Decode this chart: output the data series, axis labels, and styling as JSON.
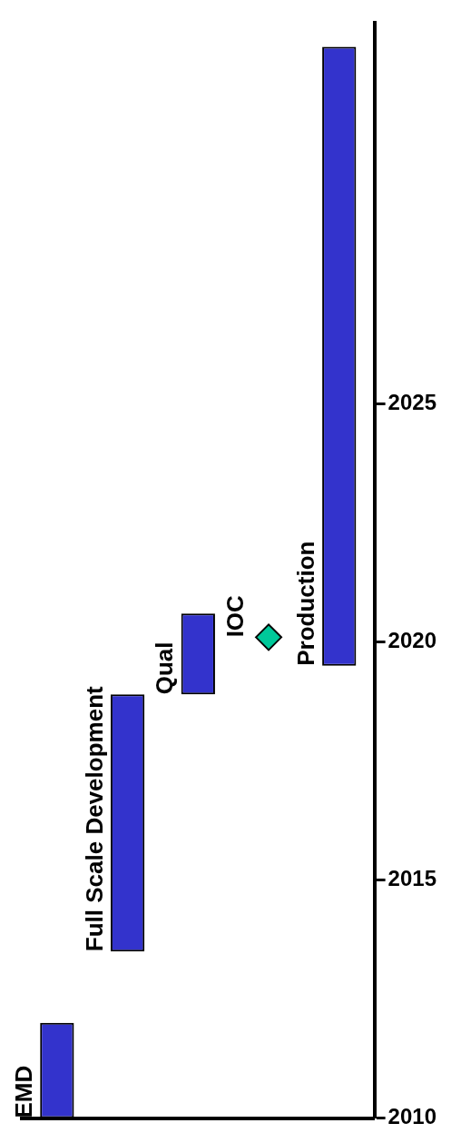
{
  "chart_data": {
    "type": "bar",
    "categories": [
      "EMD",
      "Full Scale Development",
      "Qual",
      "IOC",
      "Production"
    ],
    "series": [
      {
        "color": "#3333cc",
        "base": [
          2010,
          2013.5,
          2018.9,
          null,
          2019.5
        ],
        "values": [
          2,
          5.4,
          1.7,
          null,
          13
        ]
      },
      {
        "type": "scatter",
        "color": "#00c89a",
        "marker": "diamond",
        "values": [
          null,
          null,
          null,
          2020.1,
          null
        ]
      }
    ],
    "ylim": [
      2010,
      2033
    ],
    "yticks": [
      2010,
      2015,
      2020,
      2025
    ],
    "tick_labels": "y",
    "grid": false,
    "legend": false
  }
}
